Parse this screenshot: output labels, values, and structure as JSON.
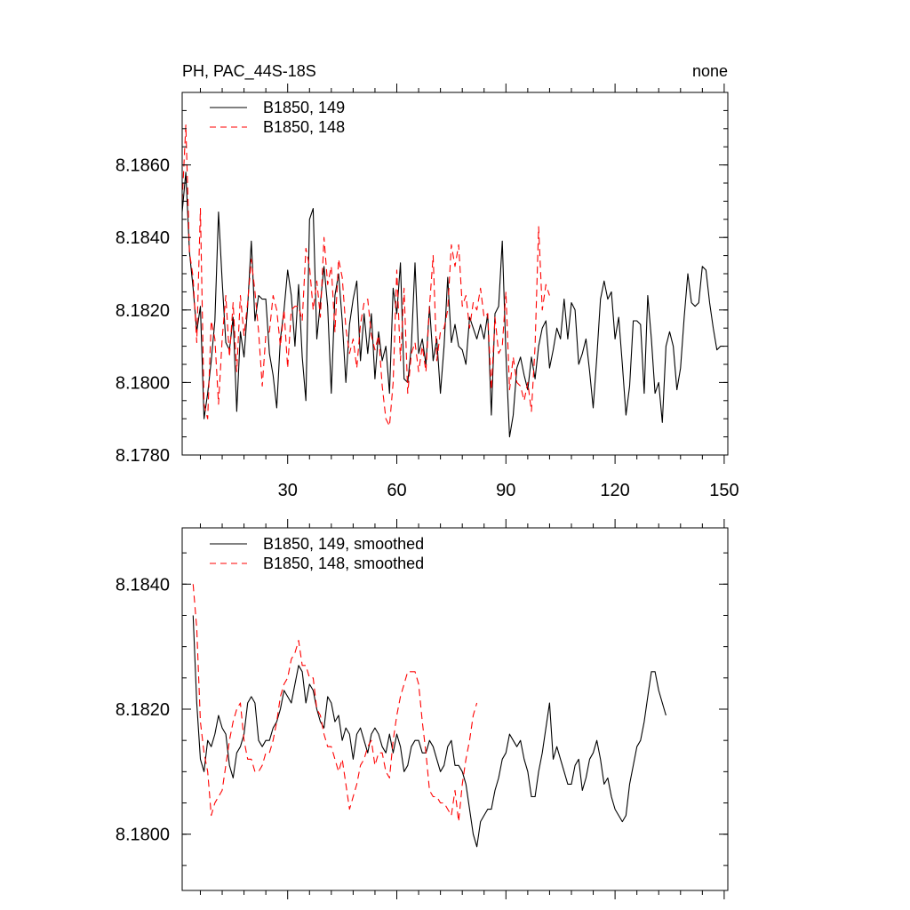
{
  "chart_data": [
    {
      "type": "line",
      "title_left": "PH, PAC_44S-18S",
      "title_right": "none",
      "xlim": [
        1,
        151
      ],
      "ylim": [
        8.178,
        8.188
      ],
      "x_major_ticks": [
        30,
        60,
        90,
        120,
        150
      ],
      "x_tick_labels": [
        "30",
        "60",
        "90",
        "120",
        "150"
      ],
      "y_major_ticks": [
        8.178,
        8.18,
        8.182,
        8.184,
        8.186
      ],
      "y_tick_labels": [
        "8.1780",
        "8.1800",
        "8.1820",
        "8.1840",
        "8.1860"
      ],
      "legend_position": "top-left",
      "series": [
        {
          "name": "B1850, 149",
          "color": "#000000",
          "dash": "solid",
          "x_start": 1,
          "values": [
            8.1847,
            8.1858,
            8.1836,
            8.1826,
            8.1814,
            8.1821,
            8.179,
            8.1797,
            8.1806,
            8.1817,
            8.1847,
            8.1828,
            8.1811,
            8.1809,
            8.1818,
            8.1792,
            8.1814,
            8.1807,
            8.1821,
            8.1839,
            8.1817,
            8.1824,
            8.1823,
            8.1823,
            8.1808,
            8.1802,
            8.1793,
            8.1812,
            8.182,
            8.1831,
            8.1824,
            8.181,
            8.1827,
            8.1807,
            8.1795,
            8.1845,
            8.1848,
            8.1812,
            8.1822,
            8.1832,
            8.1821,
            8.1797,
            8.1824,
            8.183,
            8.1817,
            8.18,
            8.1816,
            8.1823,
            8.1828,
            8.1806,
            8.1819,
            8.1808,
            8.1819,
            8.1801,
            8.1814,
            8.1806,
            8.181,
            8.1797,
            8.1826,
            8.1819,
            8.1833,
            8.1801,
            8.18,
            8.181,
            8.1833,
            8.1808,
            8.1812,
            8.1805,
            8.1821,
            8.1806,
            8.1812,
            8.1797,
            8.181,
            8.1829,
            8.1811,
            8.1816,
            8.181,
            8.1809,
            8.1805,
            8.1818,
            8.1815,
            8.1812,
            8.1816,
            8.1812,
            8.1819,
            8.1791,
            8.1819,
            8.1821,
            8.1839,
            8.1808,
            8.1785,
            8.1791,
            8.1804,
            8.1807,
            8.1802,
            8.1798,
            8.1807,
            8.1801,
            8.181,
            8.1815,
            8.1817,
            8.1804,
            8.1809,
            8.1815,
            8.1812,
            8.1823,
            8.1812,
            8.1822,
            8.182,
            8.1805,
            8.1808,
            8.1812,
            8.1803,
            8.1793,
            8.1807,
            8.1823,
            8.1828,
            8.1823,
            8.1825,
            8.1812,
            8.1818,
            8.1805,
            8.1791,
            8.1799,
            8.1817,
            8.1817,
            8.1816,
            8.1797,
            8.1824,
            8.1812,
            8.1797,
            8.18,
            8.1789,
            8.181,
            8.1814,
            8.181,
            8.1798,
            8.1804,
            8.1818,
            8.183,
            8.1822,
            8.1821,
            8.1822,
            8.1832,
            8.1831,
            8.1822,
            8.1815,
            8.1809,
            8.181,
            8.181
          ]
        },
        {
          "name": "B1850, 148",
          "color": "#ff0000",
          "dash": "dashed",
          "x_start": 1,
          "values": [
            8.185,
            8.1871,
            8.1836,
            8.1829,
            8.1811,
            8.1848,
            8.1794,
            8.179,
            8.1817,
            8.1812,
            8.1794,
            8.1812,
            8.1824,
            8.1807,
            8.1822,
            8.1803,
            8.1824,
            8.1813,
            8.1822,
            8.1834,
            8.1825,
            8.1814,
            8.1799,
            8.1813,
            8.1814,
            8.1824,
            8.182,
            8.181,
            8.182,
            8.1804,
            8.182,
            8.1821,
            8.1821,
            8.1817,
            8.1837,
            8.1832,
            8.182,
            8.1828,
            8.1818,
            8.184,
            8.1827,
            8.1832,
            8.1814,
            8.1834,
            8.1829,
            8.1815,
            8.1808,
            8.1812,
            8.1804,
            8.1816,
            8.1822,
            8.1823,
            8.1813,
            8.1809,
            8.1813,
            8.1799,
            8.179,
            8.1788,
            8.18,
            8.1831,
            8.1806,
            8.1826,
            8.1797,
            8.1808,
            8.1811,
            8.1803,
            8.181,
            8.1803,
            8.1821,
            8.1835,
            8.1806,
            8.1814,
            8.1815,
            8.182,
            8.1838,
            8.1832,
            8.1838,
            8.1821,
            8.1824,
            8.1815,
            8.1822,
            8.182,
            8.1826,
            8.1818,
            8.1819,
            8.1798,
            8.1818,
            8.1808,
            8.181,
            8.1825,
            8.1798,
            8.1807,
            8.18,
            8.1799,
            8.1795,
            8.18,
            8.1792,
            8.181,
            8.1843,
            8.182,
            8.1827,
            8.1824
          ]
        }
      ]
    },
    {
      "type": "line",
      "xlim": [
        1,
        151
      ],
      "ylim": [
        8.1791,
        8.1849
      ],
      "x_major_ticks": [
        30,
        60,
        90,
        120,
        150
      ],
      "y_major_ticks": [
        8.18,
        8.182,
        8.184
      ],
      "y_tick_labels": [
        "8.1800",
        "8.1820",
        "8.1840"
      ],
      "legend_position": "top-left",
      "series": [
        {
          "name": "B1850, 149, smoothed",
          "color": "#000000",
          "dash": "solid",
          "x_start": 4,
          "values": [
            8.1835,
            8.1821,
            8.1812,
            8.181,
            8.1815,
            8.1814,
            8.1816,
            8.1819,
            8.1817,
            8.1816,
            8.1811,
            8.1809,
            8.1813,
            8.1814,
            8.1816,
            8.1821,
            8.1822,
            8.1821,
            8.1815,
            8.1814,
            8.1815,
            8.1815,
            8.1817,
            8.1818,
            8.182,
            8.1823,
            8.1822,
            8.1821,
            8.1824,
            8.1827,
            8.1826,
            8.1821,
            8.1824,
            8.1823,
            8.182,
            8.1818,
            8.1817,
            8.1822,
            8.1821,
            8.1818,
            8.1819,
            8.1815,
            8.1817,
            8.1816,
            8.1812,
            8.1816,
            8.1817,
            8.1815,
            8.1813,
            8.1816,
            8.1817,
            8.1816,
            8.1814,
            8.1813,
            8.1816,
            8.1813,
            8.1816,
            8.1814,
            8.181,
            8.1811,
            8.1814,
            8.1815,
            8.1815,
            8.1813,
            8.1813,
            8.1815,
            8.1814,
            8.1812,
            8.181,
            8.1811,
            8.1814,
            8.1815,
            8.1811,
            8.1811,
            8.181,
            8.1808,
            8.1804,
            8.18,
            8.1798,
            8.1802,
            8.1803,
            8.1804,
            8.1804,
            8.1807,
            8.1809,
            8.1812,
            8.1813,
            8.1816,
            8.1815,
            8.1814,
            8.1815,
            8.1812,
            8.181,
            8.1806,
            8.1806,
            8.181,
            8.1813,
            8.1817,
            8.1821,
            8.1812,
            8.1814,
            8.1812,
            8.181,
            8.1808,
            8.1808,
            8.1811,
            8.1812,
            8.1807,
            8.1809,
            8.1812,
            8.1813,
            8.1815,
            8.1812,
            8.1808,
            8.1809,
            8.1806,
            8.1804,
            8.1803,
            8.1802,
            8.1803,
            8.1808,
            8.1811,
            8.1814,
            8.1815,
            8.1818,
            8.1822,
            8.1826,
            8.1826,
            8.1823,
            8.1821,
            8.1819
          ]
        },
        {
          "name": "B1850, 148, smoothed",
          "color": "#ff0000",
          "dash": "dashed",
          "x_start": 4,
          "values": [
            8.184,
            8.1833,
            8.1818,
            8.1813,
            8.181,
            8.1803,
            8.1805,
            8.1806,
            8.1807,
            8.1811,
            8.1815,
            8.1818,
            8.182,
            8.1821,
            8.1815,
            8.1812,
            8.1812,
            8.181,
            8.181,
            8.1811,
            8.1813,
            8.1813,
            8.1815,
            8.1818,
            8.1822,
            8.1824,
            8.1825,
            8.1828,
            8.1829,
            8.1831,
            8.1827,
            8.1827,
            8.1825,
            8.1825,
            8.182,
            8.1819,
            8.1816,
            8.1814,
            8.1814,
            8.1812,
            8.181,
            8.1812,
            8.1808,
            8.1804,
            8.1806,
            8.1808,
            8.1811,
            8.1812,
            8.1814,
            8.1815,
            8.1811,
            8.1813,
            8.1813,
            8.181,
            8.1809,
            8.1815,
            8.1819,
            8.1822,
            8.1824,
            8.1826,
            8.1826,
            8.1826,
            8.1824,
            8.1818,
            8.1813,
            8.1807,
            8.1806,
            8.1806,
            8.1805,
            8.1805,
            8.1804,
            8.1803,
            8.1807,
            8.1802,
            8.1808,
            8.1812,
            8.1815,
            8.1819,
            8.1821
          ]
        }
      ]
    }
  ]
}
